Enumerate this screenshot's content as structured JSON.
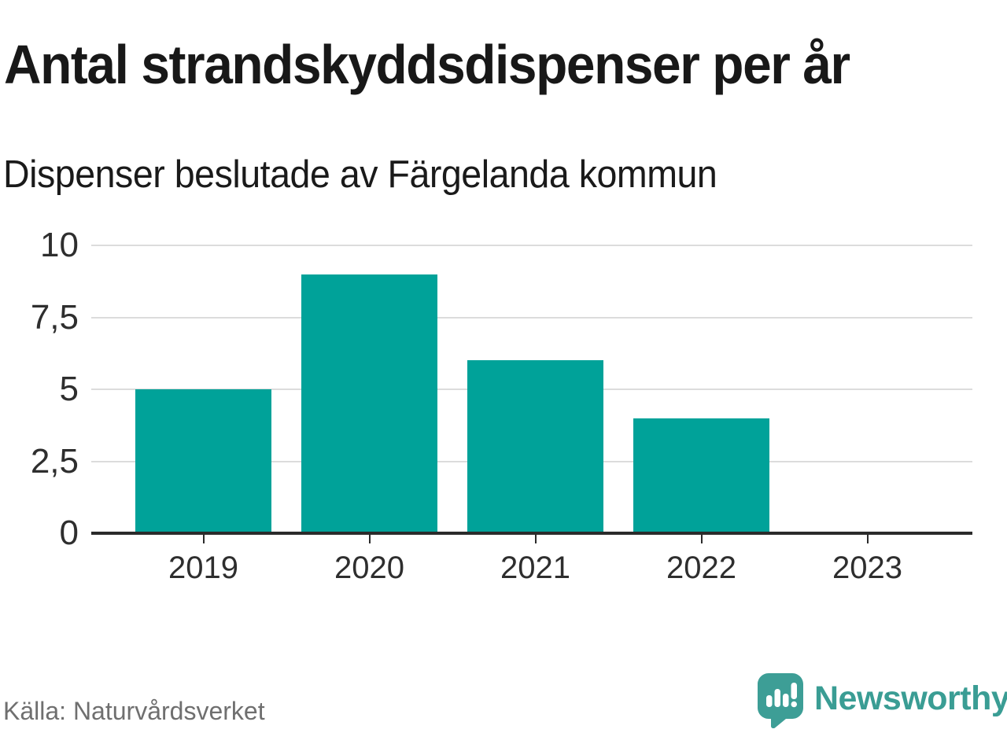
{
  "header": {
    "title": "Antal strandskyddsdispenser per år",
    "subtitle": "Dispenser beslutade av Färgelanda kommun"
  },
  "footer": {
    "source": "Källa: Naturvårdsverket",
    "brand_name": "Newsworthy"
  },
  "colors": {
    "bar": "#00a299",
    "gridline": "#dcdcdc",
    "axis": "#2b2b2b",
    "brand_teal": "#3a9d94",
    "text_dark": "#181818",
    "source_gray": "#6f6f6f"
  },
  "chart_data": {
    "type": "bar",
    "title": "Antal strandskyddsdispenser per år",
    "subtitle": "Dispenser beslutade av Färgelanda kommun",
    "categories": [
      "2019",
      "2020",
      "2021",
      "2022",
      "2023"
    ],
    "values": [
      5,
      9,
      6,
      4,
      0
    ],
    "xlabel": "",
    "ylabel": "",
    "ylim": [
      0,
      10
    ],
    "yticks": [
      {
        "value": 0,
        "label": "0"
      },
      {
        "value": 2.5,
        "label": "2,5"
      },
      {
        "value": 5,
        "label": "5"
      },
      {
        "value": 7.5,
        "label": "7,5"
      },
      {
        "value": 10,
        "label": "10"
      }
    ],
    "grid": true,
    "legend": "none",
    "source": "Källa: Naturvårdsverket"
  }
}
